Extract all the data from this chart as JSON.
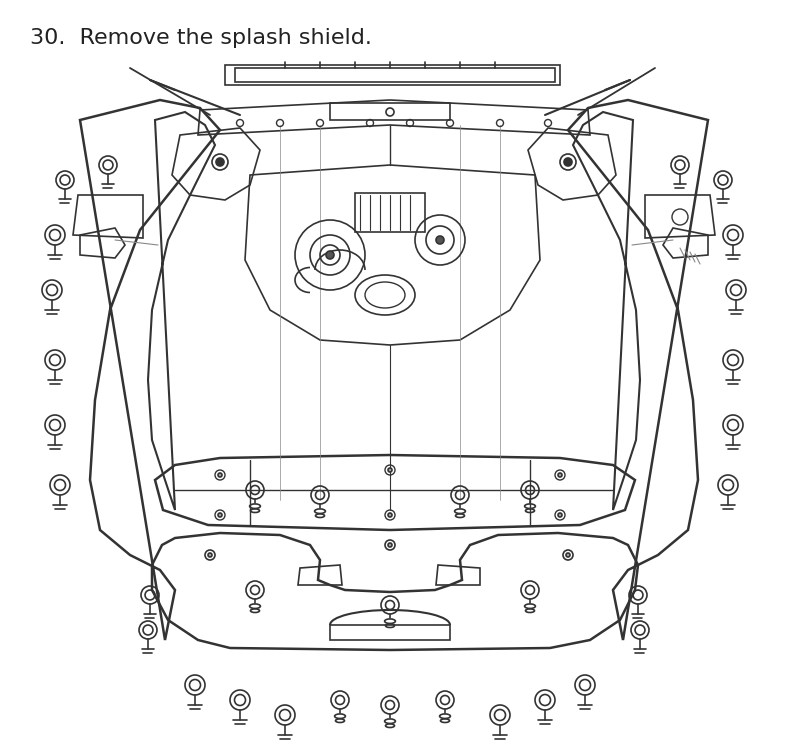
{
  "title": "30.  Remove the splash shield.",
  "title_fontsize": 16,
  "title_color": "#222222",
  "background_color": "#ffffff",
  "line_color": "#333333",
  "line_width": 1.2,
  "figsize": [
    7.88,
    7.54
  ],
  "dpi": 100
}
